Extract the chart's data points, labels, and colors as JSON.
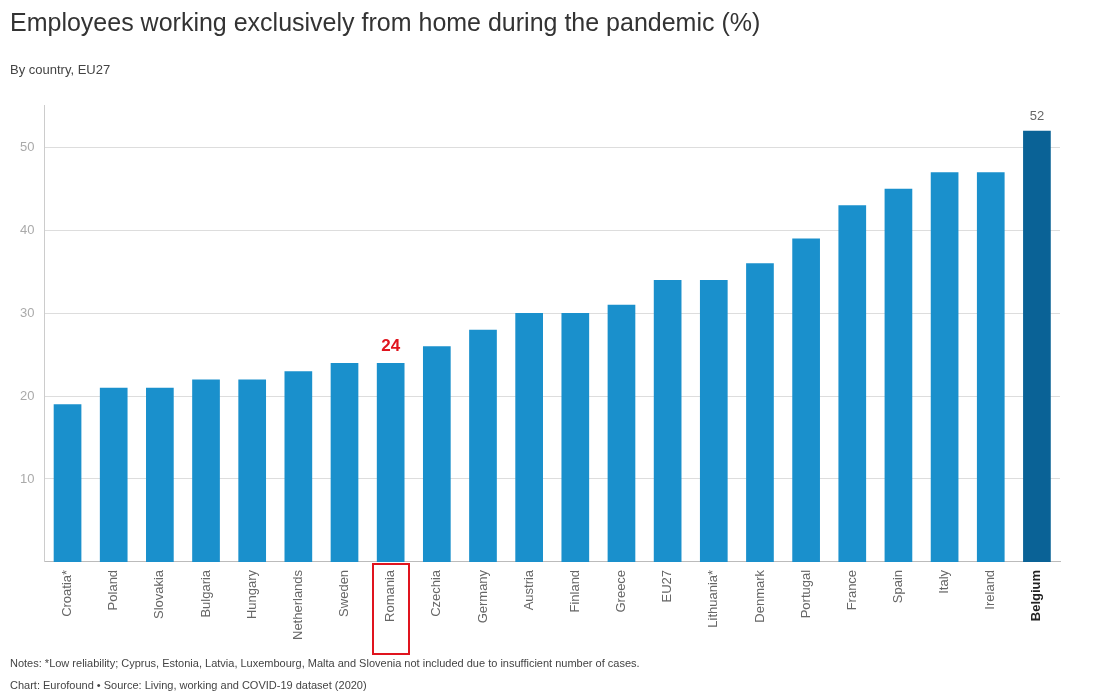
{
  "chart_data": {
    "type": "bar",
    "title": "Employees working exclusively from home during the pandemic (%)",
    "subtitle": "By country, EU27",
    "categories": [
      "Croatia*",
      "Poland",
      "Slovakia",
      "Bulgaria",
      "Hungary",
      "Netherlands",
      "Sweden",
      "Romania",
      "Czechia",
      "Germany",
      "Austria",
      "Finland",
      "Greece",
      "EU27",
      "Lithuania*",
      "Denmark",
      "Portugal",
      "France",
      "Spain",
      "Italy",
      "Ireland",
      "Belgium"
    ],
    "values": [
      19,
      21,
      21,
      22,
      22,
      23,
      24,
      24,
      26,
      28,
      30,
      30,
      31,
      34,
      34,
      36,
      39,
      43,
      45,
      47,
      47,
      52
    ],
    "colors": [
      "#1a90cc",
      "#1a90cc",
      "#1a90cc",
      "#1a90cc",
      "#1a90cc",
      "#1a90cc",
      "#1a90cc",
      "#1a90cc",
      "#1a90cc",
      "#1a90cc",
      "#1a90cc",
      "#1a90cc",
      "#1a90cc",
      "#1a90cc",
      "#1a90cc",
      "#1a90cc",
      "#1a90cc",
      "#1a90cc",
      "#1a90cc",
      "#1a90cc",
      "#1a90cc",
      "#0a6296"
    ],
    "value_labels": [
      null,
      null,
      null,
      null,
      null,
      null,
      null,
      "24",
      null,
      null,
      null,
      null,
      null,
      null,
      null,
      null,
      null,
      null,
      null,
      null,
      null,
      "52"
    ],
    "ylim": [
      0,
      55
    ],
    "yticks": [
      10,
      20,
      30,
      40,
      50
    ],
    "grid": "y",
    "legend": false,
    "annotations": [
      "Notes: *Low reliability; Cyprus, Estonia, Latvia, Luxembourg, Malta and Slovenia not included due to insufficient number of cases.",
      "Chart: Eurofound • Source: Living, working and COVID-19 dataset (2020)"
    ]
  }
}
